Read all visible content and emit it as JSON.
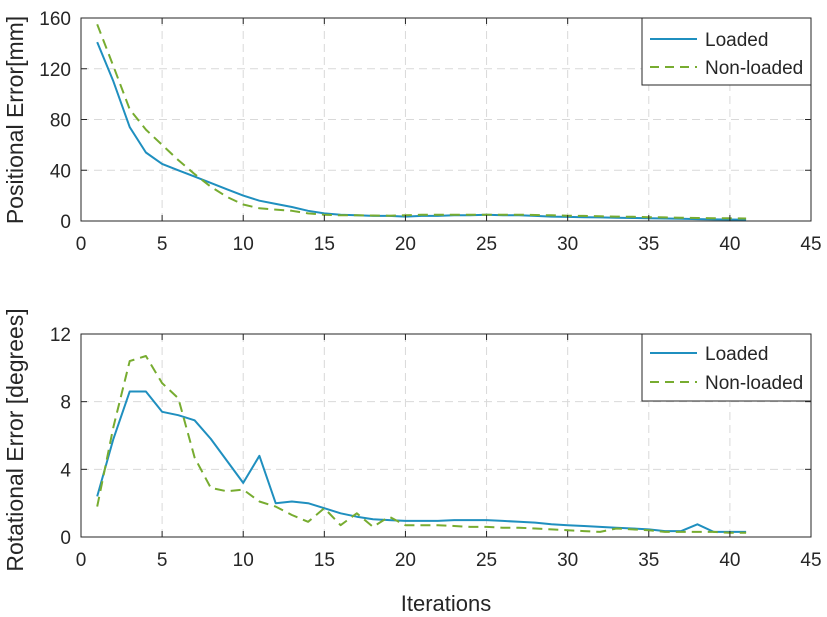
{
  "chart_data": [
    {
      "type": "line",
      "title": "",
      "xlabel": "",
      "ylabel": "Positional Error[mm]",
      "xlim": [
        0,
        45
      ],
      "ylim": [
        0,
        160
      ],
      "xticks": [
        "0",
        "5",
        "10",
        "15",
        "20",
        "25",
        "30",
        "35",
        "40",
        "45"
      ],
      "yticks": [
        "0",
        "40",
        "80",
        "120",
        "160"
      ],
      "grid": true,
      "legend_position": "top-right",
      "x": [
        1,
        2,
        3,
        4,
        5,
        6,
        7,
        8,
        9,
        10,
        11,
        12,
        13,
        14,
        15,
        16,
        17,
        18,
        19,
        20,
        21,
        22,
        23,
        24,
        25,
        26,
        27,
        28,
        29,
        30,
        31,
        32,
        33,
        34,
        35,
        36,
        37,
        38,
        39,
        40,
        41
      ],
      "series": [
        {
          "name": "Loaded",
          "color": "#1f8fbf",
          "dash": "solid",
          "values": [
            141,
            110,
            74,
            54,
            45,
            40,
            35,
            30,
            25,
            20,
            16,
            13.5,
            11,
            8,
            6,
            5,
            4.5,
            4,
            4,
            3.5,
            4,
            4,
            4.5,
            4.5,
            5,
            4.5,
            4.5,
            4,
            3.5,
            3.2,
            3,
            2.8,
            2.6,
            2.4,
            2.2,
            2,
            1.8,
            1.5,
            1.3,
            1.2,
            1
          ]
        },
        {
          "name": "Non-loaded",
          "color": "#77ac30",
          "dash": "dashed",
          "values": [
            155,
            122,
            88,
            72,
            60,
            48,
            37,
            27,
            19,
            13,
            10,
            9,
            8,
            6,
            5,
            4.5,
            4.5,
            4.3,
            4.2,
            4.5,
            5,
            5,
            5,
            5,
            5,
            5,
            5,
            4.7,
            4.5,
            4.2,
            4,
            3.7,
            3.5,
            3.3,
            3,
            2.8,
            2.6,
            2.4,
            2.2,
            2.1,
            2
          ]
        }
      ],
      "legend": [
        "Loaded",
        "Non-loaded"
      ]
    },
    {
      "type": "line",
      "title": "",
      "xlabel": "Iterations",
      "ylabel": "Rotational Error [degrees]",
      "xlim": [
        0,
        45
      ],
      "ylim": [
        0,
        12
      ],
      "xticks": [
        "0",
        "5",
        "10",
        "15",
        "20",
        "25",
        "30",
        "35",
        "40",
        "45"
      ],
      "yticks": [
        "0",
        "4",
        "8",
        "12"
      ],
      "grid": true,
      "legend_position": "top-right",
      "x": [
        1,
        2,
        3,
        4,
        5,
        6,
        7,
        8,
        9,
        10,
        11,
        12,
        13,
        14,
        15,
        16,
        17,
        18,
        19,
        20,
        21,
        22,
        23,
        24,
        25,
        26,
        27,
        28,
        29,
        30,
        31,
        32,
        33,
        34,
        35,
        36,
        37,
        38,
        39,
        40,
        41
      ],
      "series": [
        {
          "name": "Loaded",
          "color": "#1f8fbf",
          "dash": "solid",
          "values": [
            2.4,
            5.8,
            8.6,
            8.6,
            7.4,
            7.2,
            6.9,
            5.8,
            4.5,
            3.2,
            4.8,
            2,
            2.1,
            2,
            1.7,
            1.4,
            1.2,
            1.05,
            1,
            0.95,
            0.95,
            0.95,
            1,
            1,
            1,
            0.95,
            0.9,
            0.85,
            0.75,
            0.7,
            0.65,
            0.6,
            0.55,
            0.5,
            0.45,
            0.35,
            0.35,
            0.75,
            0.3,
            0.3,
            0.3
          ]
        },
        {
          "name": "Non-loaded",
          "color": "#77ac30",
          "dash": "dashed",
          "values": [
            1.8,
            6.5,
            10.4,
            10.7,
            9.1,
            8.2,
            4.7,
            2.9,
            2.7,
            2.8,
            2.1,
            1.8,
            1.3,
            0.9,
            1.7,
            0.7,
            1.4,
            0.6,
            1.2,
            0.7,
            0.7,
            0.7,
            0.65,
            0.6,
            0.6,
            0.55,
            0.55,
            0.5,
            0.45,
            0.4,
            0.35,
            0.3,
            0.5,
            0.45,
            0.4,
            0.3,
            0.3,
            0.3,
            0.3,
            0.25,
            0.25
          ]
        }
      ],
      "legend": [
        "Loaded",
        "Non-loaded"
      ]
    }
  ]
}
